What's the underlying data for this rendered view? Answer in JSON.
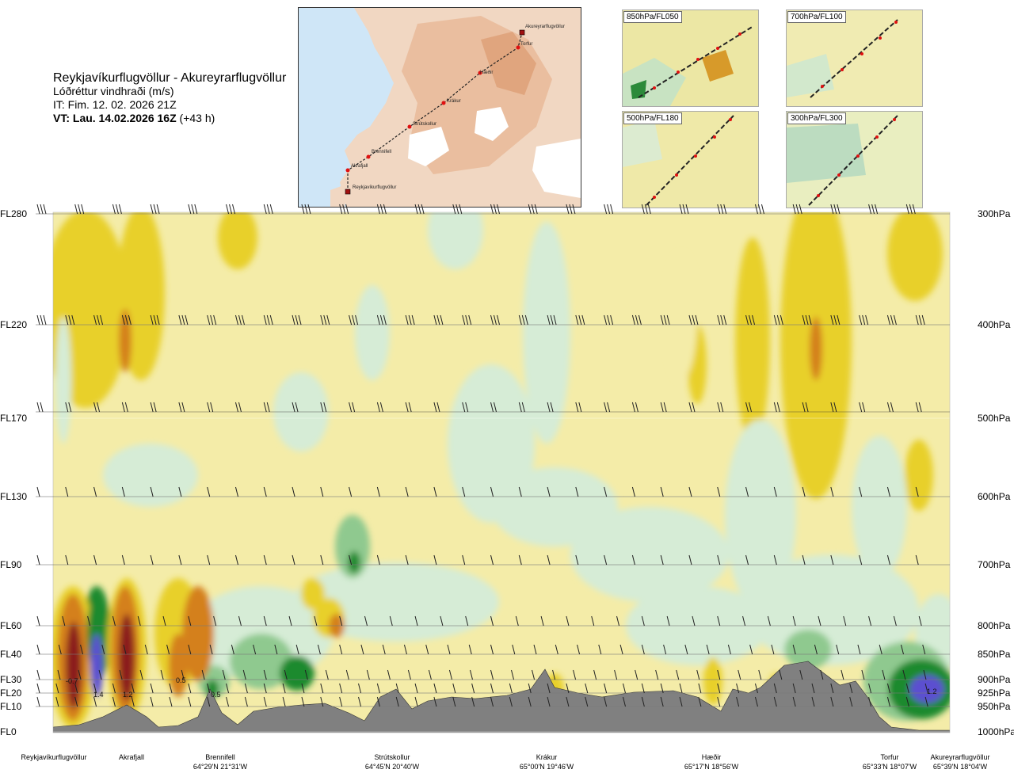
{
  "header": {
    "route": "Reykjavíkurflugvöllur - Akureyrarflugvöllur",
    "quantity": "Lóðréttur vindhraði (m/s)",
    "issue_time": "IT: Fim. 12. 02. 2026 21Z",
    "valid_time_bold": "VT: Lau. 14.02.2026 16Z",
    "valid_time_offset": " (+43 h)"
  },
  "map": {
    "waypoints": [
      "Reykjavíkurflugvöllur",
      "Akrafjall",
      "Brennifell",
      "Strútskollur",
      "Krákur",
      "Hæðir",
      "Torfur",
      "Akureyrarflugvöllur"
    ]
  },
  "mini_maps": [
    "850hPa/FL050",
    "700hPa/FL100",
    "500hPa/FL180",
    "300hPa/FL300"
  ],
  "colors": {
    "strong_up": "#8b1a1a",
    "up": "#d4801e",
    "weak_up": "#e8d02a",
    "neutral": "#f4eca8",
    "weak_down": "#d6ecd6",
    "down": "#8fc98f",
    "strong_down": "#1f8a2e",
    "extreme_down": "#5b4fd0",
    "terrain": "#808080"
  },
  "chart_data": {
    "type": "heatmap",
    "title": "Lóðréttur vindhraði (m/s)",
    "flight_levels": [
      "FL280",
      "FL220",
      "FL170",
      "FL130",
      "FL90",
      "FL60",
      "FL40",
      "FL30",
      "FL20",
      "FL10",
      "FL0"
    ],
    "pressure_levels": [
      "300hPa",
      "400hPa",
      "500hPa",
      "600hPa",
      "700hPa",
      "800hPa",
      "850hPa",
      "900hPa",
      "925hPa",
      "950hPa",
      "1000hPa"
    ],
    "locations": [
      {
        "name": "Reykjavíkurflugvöllur",
        "coord": ""
      },
      {
        "name": "Akrafjall",
        "coord": ""
      },
      {
        "name": "Brennifell",
        "coord": "64°29'N 21°31'W"
      },
      {
        "name": "Strútskollur",
        "coord": "64°45'N 20°40'W"
      },
      {
        "name": "Krákur",
        "coord": "65°00'N 19°46'W"
      },
      {
        "name": "Hæðir",
        "coord": "65°17'N 18°56'W"
      },
      {
        "name": "Torfur",
        "coord": "65°33'N 18°07'W"
      },
      {
        "name": "Akureyrarflugvöllur",
        "coord": "65°39'N 18°04'W"
      }
    ],
    "value_labels": [
      "-0.7",
      "1.4",
      "1.2",
      "0.5",
      "0.5",
      "1.2"
    ]
  }
}
